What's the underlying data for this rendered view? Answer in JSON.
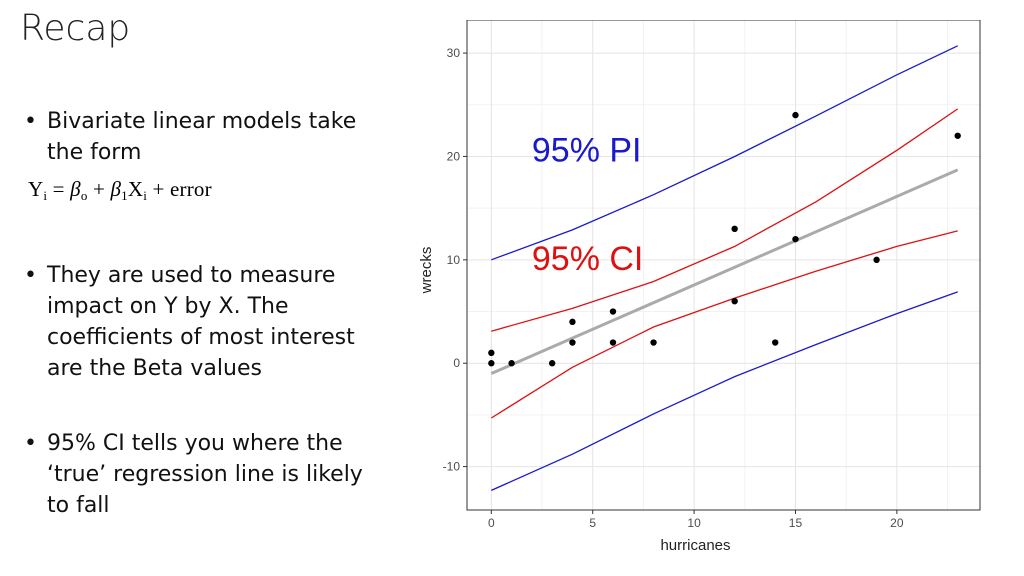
{
  "slide": {
    "title": "Recap",
    "bullets": [
      "Bivariate linear models take the form",
      "They are used to measure impact on Y by X. The coefficients of most interest are the Beta values",
      "95% CI tells you where the ‘true’ regression line is likely to fall"
    ],
    "bullet_char": "•",
    "formula": {
      "y": "Y",
      "i1": "i",
      "eq": " = ",
      "b0": "β",
      "o": "o",
      "plus1": " + ",
      "b1": "β",
      "one": "1",
      "x": "X",
      "i2": "i",
      "rest": " + error"
    }
  },
  "chart_data": {
    "type": "scatter",
    "xlabel": "hurricanes",
    "ylabel": "wrecks",
    "xlim": [
      -1.2,
      24.1
    ],
    "ylim": [
      -14.2,
      33.2
    ],
    "xticks": [
      0,
      5,
      10,
      15,
      20
    ],
    "yticks": [
      -10,
      0,
      10,
      20,
      30
    ],
    "grid": true,
    "points": [
      {
        "x": 0,
        "y": 1
      },
      {
        "x": 0,
        "y": 0
      },
      {
        "x": 1,
        "y": 0
      },
      {
        "x": 3,
        "y": 0
      },
      {
        "x": 4,
        "y": 4
      },
      {
        "x": 4,
        "y": 2
      },
      {
        "x": 6,
        "y": 5
      },
      {
        "x": 6,
        "y": 2
      },
      {
        "x": 8,
        "y": 2
      },
      {
        "x": 12,
        "y": 13
      },
      {
        "x": 12,
        "y": 6
      },
      {
        "x": 14,
        "y": 2
      },
      {
        "x": 15,
        "y": 24
      },
      {
        "x": 15,
        "y": 12
      },
      {
        "x": 19,
        "y": 10
      },
      {
        "x": 23,
        "y": 22
      }
    ],
    "fit_line": {
      "x": [
        0,
        23
      ],
      "y": [
        -1.0,
        18.7
      ],
      "color": "#aaaaaa"
    },
    "ci_band": {
      "label": "95% CI",
      "color": "#dd1111",
      "x": [
        0,
        4,
        8,
        12,
        16,
        20,
        23
      ],
      "upper": [
        3.1,
        5.3,
        7.9,
        11.3,
        15.6,
        20.6,
        24.6
      ],
      "lower": [
        -5.3,
        -0.4,
        3.5,
        6.3,
        8.9,
        11.3,
        12.8
      ]
    },
    "pi_band": {
      "label": "95% PI",
      "color": "#1a1acc",
      "x": [
        0,
        4,
        8,
        12,
        16,
        20,
        23
      ],
      "upper": [
        10.0,
        12.9,
        16.3,
        20.0,
        23.9,
        27.9,
        30.7
      ],
      "lower": [
        -12.3,
        -8.8,
        -4.9,
        -1.3,
        1.8,
        4.8,
        6.9
      ]
    },
    "annotations": [
      {
        "text": "95% PI",
        "color": "#1a1acc",
        "x": 2.0,
        "y": 19.5
      },
      {
        "text": "95% CI",
        "color": "#dd1111",
        "x": 2.0,
        "y": 9.0
      }
    ]
  }
}
